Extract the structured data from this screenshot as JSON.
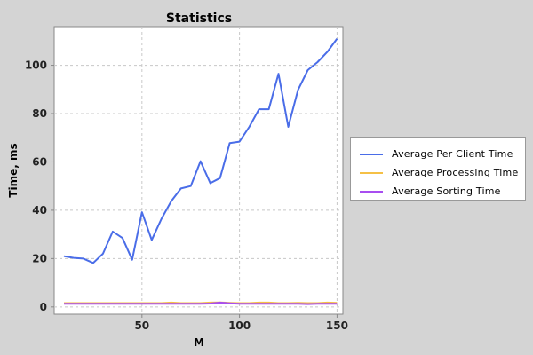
{
  "chart_data": {
    "type": "line",
    "title": "Statistics",
    "xlabel": "M",
    "ylabel": "Time, ms",
    "xlim": [
      5,
      153
    ],
    "ylim": [
      -3,
      116
    ],
    "x_ticks": [
      50,
      100,
      150
    ],
    "y_ticks": [
      0,
      20,
      40,
      60,
      80,
      100
    ],
    "grid": true,
    "legend_position": "right",
    "x": [
      10,
      15,
      20,
      25,
      30,
      35,
      40,
      45,
      50,
      55,
      60,
      65,
      70,
      75,
      80,
      85,
      90,
      95,
      100,
      105,
      110,
      115,
      120,
      125,
      130,
      135,
      140,
      145,
      150
    ],
    "series": [
      {
        "name": "Average Per Client Time",
        "color": "#4a6de8",
        "values": [
          21,
          20.3,
          20,
          18.2,
          22,
          31.2,
          28.5,
          19.5,
          39.2,
          27.7,
          36.5,
          43.8,
          49,
          50,
          60.3,
          51.2,
          53.3,
          67.8,
          68.4,
          74.5,
          81.8,
          81.8,
          96.5,
          74.5,
          89.8,
          98,
          101.3,
          105.5,
          111
        ]
      },
      {
        "name": "Average Processing Time",
        "color": "#f5c046",
        "values": [
          1.6,
          1.6,
          1.6,
          1.6,
          1.6,
          1.6,
          1.6,
          1.6,
          1.6,
          1.6,
          1.6,
          1.8,
          1.6,
          1.6,
          1.6,
          1.8,
          1.9,
          1.7,
          1.6,
          1.6,
          1.8,
          1.8,
          1.6,
          1.6,
          1.7,
          1.6,
          1.6,
          1.8,
          1.7
        ]
      },
      {
        "name": "Average Sorting Time",
        "color": "#a84ef0",
        "values": [
          1.3,
          1.3,
          1.3,
          1.3,
          1.3,
          1.3,
          1.3,
          1.3,
          1.3,
          1.3,
          1.3,
          1.3,
          1.3,
          1.3,
          1.3,
          1.4,
          1.8,
          1.5,
          1.3,
          1.3,
          1.3,
          1.3,
          1.3,
          1.3,
          1.3,
          1.2,
          1.3,
          1.3,
          1.3
        ]
      }
    ]
  }
}
